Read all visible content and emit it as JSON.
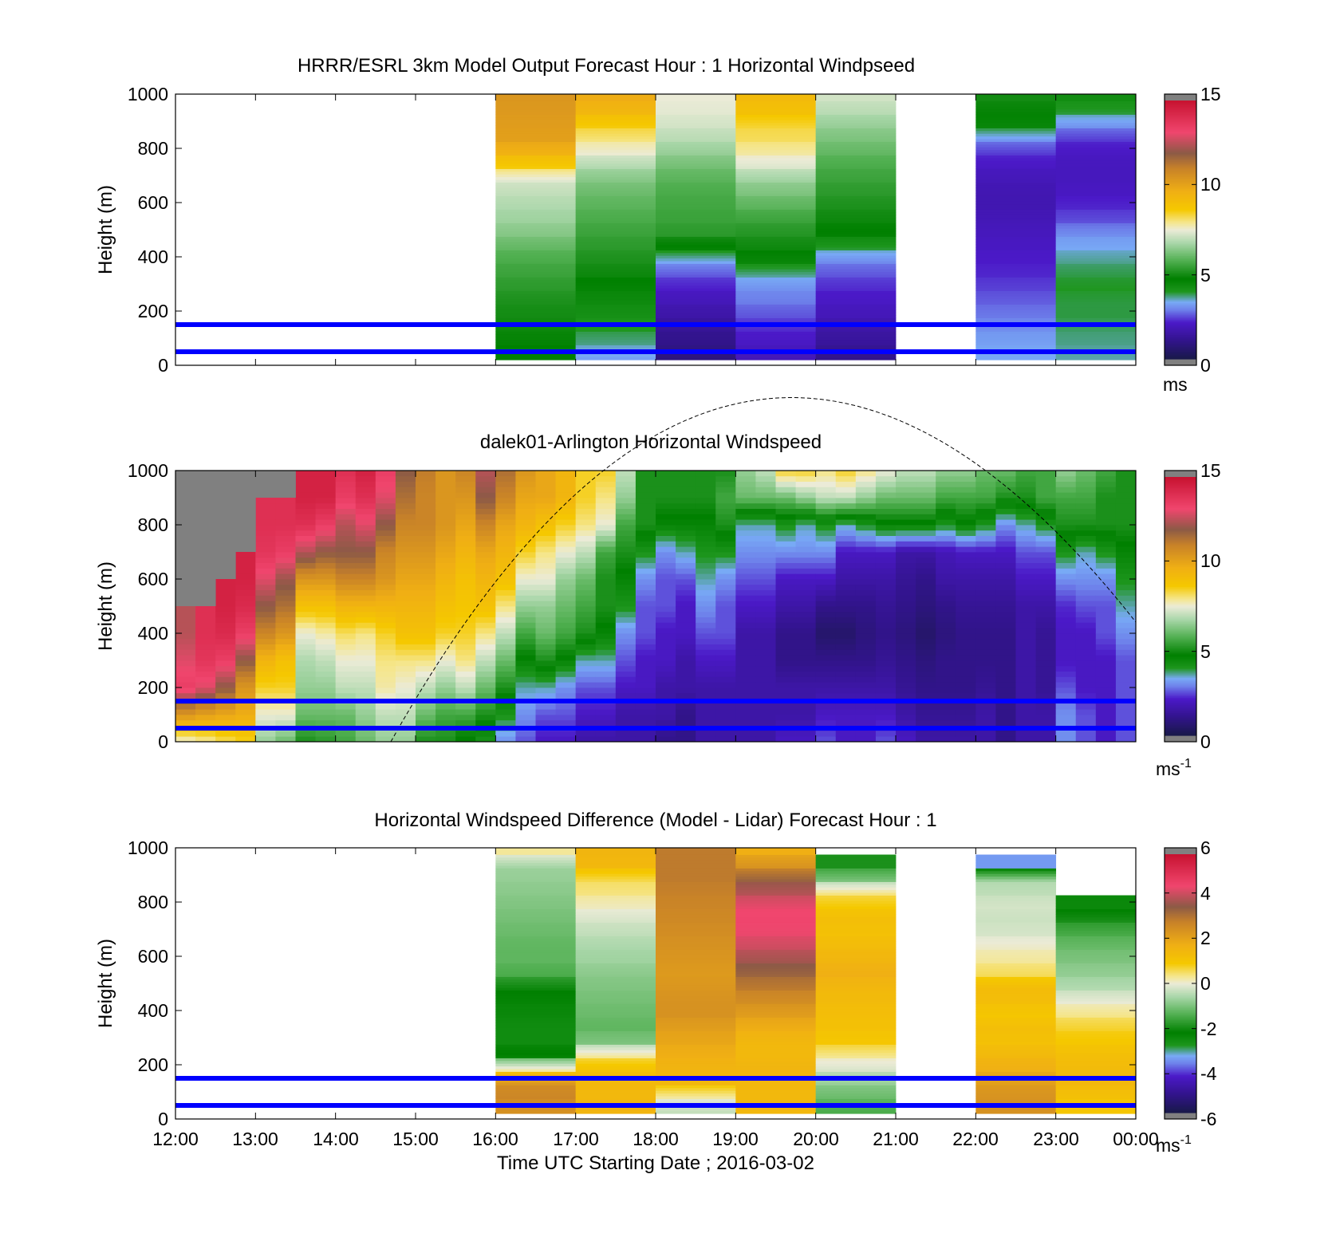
{
  "chart_data": [
    {
      "type": "heatmap",
      "title": "HRRR/ESRL 3km Model Output   Forecast Hour : 1 Horizontal Windpseed",
      "ylabel": "Height (m)",
      "xlabel": "",
      "ylim": [
        0,
        1000
      ],
      "yticks": [
        "0",
        "200",
        "400",
        "600",
        "800",
        "1000"
      ],
      "xlim_hours": [
        12,
        24
      ],
      "colorbar": {
        "min": 0,
        "max": 15,
        "ticks": [
          "0",
          "5",
          "10",
          "15"
        ],
        "unit": "ms",
        "unit_sup": ""
      },
      "reference_lines_m": [
        50,
        150
      ],
      "hours": [
        16,
        17,
        18,
        19,
        20,
        22,
        23
      ],
      "heights": [
        50,
        100,
        150,
        200,
        250,
        300,
        350,
        400,
        450,
        500,
        550,
        600,
        650,
        700,
        750,
        800,
        850,
        900,
        950,
        1000
      ],
      "values": [
        [
          4.6,
          4.7,
          4.8,
          4.9,
          5.0,
          5.2,
          5.4,
          5.6,
          5.9,
          6.3,
          6.6,
          6.8,
          7.0,
          7.3,
          8.6,
          9.6,
          10.2,
          10.3,
          10.4,
          10.5
        ],
        [
          3.2,
          3.6,
          3.9,
          4.1,
          4.3,
          4.5,
          4.8,
          5.0,
          5.2,
          5.4,
          5.6,
          5.8,
          6.0,
          6.3,
          6.8,
          7.5,
          8.0,
          8.6,
          9.4,
          9.8
        ],
        [
          0.8,
          1.0,
          1.2,
          1.5,
          1.8,
          2.1,
          2.5,
          3.2,
          4.5,
          5.2,
          5.4,
          5.5,
          5.6,
          5.8,
          6.1,
          6.5,
          6.9,
          7.2,
          7.4,
          7.5
        ],
        [
          1.8,
          2.0,
          2.2,
          2.5,
          2.8,
          3.0,
          3.5,
          4.4,
          4.8,
          5.1,
          5.4,
          5.8,
          6.2,
          6.6,
          7.3,
          7.8,
          8.2,
          8.4,
          9.0,
          9.3
        ],
        [
          1.0,
          1.3,
          1.5,
          1.8,
          2.0,
          2.2,
          2.5,
          2.9,
          3.8,
          4.6,
          4.8,
          5.0,
          5.2,
          5.4,
          5.6,
          5.9,
          6.2,
          6.5,
          6.9,
          7.2
        ],
        [
          3.3,
          3.2,
          3.0,
          2.8,
          2.6,
          2.4,
          2.2,
          2.1,
          2.0,
          1.9,
          1.8,
          1.7,
          1.7,
          1.8,
          2.0,
          2.3,
          3.0,
          4.4,
          4.7,
          4.9
        ],
        [
          3.5,
          3.6,
          3.7,
          3.8,
          3.8,
          3.9,
          3.8,
          3.6,
          3.3,
          3.0,
          2.5,
          2.2,
          2.0,
          1.9,
          1.9,
          2.0,
          2.3,
          3.0,
          3.8,
          4.2
        ]
      ]
    },
    {
      "type": "heatmap",
      "title": "dalek01-Arlington  Horizontal Windspeed",
      "ylabel": "Height (m)",
      "xlabel": "",
      "ylim": [
        0,
        1000
      ],
      "yticks": [
        "0",
        "200",
        "400",
        "600",
        "800",
        "1000"
      ],
      "xlim_hours": [
        12,
        24
      ],
      "colorbar": {
        "min": 0,
        "max": 15,
        "ticks": [
          "0",
          "5",
          "10",
          "15"
        ],
        "unit": "ms",
        "unit_sup": "-1"
      },
      "reference_lines_m": [
        50,
        150
      ],
      "hours": [
        12,
        12.25,
        12.5,
        12.75,
        13,
        13.25,
        13.5,
        13.75,
        14,
        14.25,
        14.5,
        14.75,
        15,
        15.25,
        15.5,
        15.75,
        16,
        16.25,
        16.5,
        16.75,
        17,
        17.25,
        17.5,
        17.75,
        18,
        18.25,
        18.5,
        18.75,
        19,
        19.25,
        19.5,
        19.75,
        20,
        20.25,
        20.5,
        20.75,
        21,
        21.25,
        21.5,
        21.75,
        22,
        22.25,
        22.5,
        22.75,
        23,
        23.25,
        23.5,
        23.75
      ],
      "heights": [
        0,
        100,
        200,
        300,
        400,
        500,
        600,
        700,
        800,
        900,
        1000
      ],
      "values": [
        [
          7.5,
          10.5,
          13.5,
          13.0,
          12.5,
          null,
          null,
          null,
          null,
          null,
          null
        ],
        [
          7.8,
          10.2,
          13.0,
          13.8,
          14.0,
          null,
          null,
          null,
          null,
          null,
          null
        ],
        [
          8.2,
          10.0,
          12.0,
          13.5,
          14.2,
          14.5,
          null,
          null,
          null,
          null,
          null
        ],
        [
          8.5,
          9.8,
          10.5,
          12.0,
          13.5,
          14.2,
          14.5,
          null,
          null,
          null,
          null
        ],
        [
          6.5,
          7.5,
          8.5,
          9.5,
          11.0,
          12.0,
          13.0,
          13.8,
          14.0,
          null,
          null
        ],
        [
          6.0,
          7.5,
          8.5,
          9.0,
          10.5,
          11.5,
          12.2,
          13.5,
          14.0,
          null,
          null
        ],
        [
          5.0,
          6.0,
          6.5,
          6.8,
          7.5,
          9.0,
          10.5,
          12.5,
          14.0,
          14.5,
          null
        ],
        [
          5.2,
          6.0,
          6.5,
          7.0,
          7.8,
          9.0,
          10.5,
          12.0,
          13.5,
          14.5,
          null
        ],
        [
          5.5,
          6.0,
          7.0,
          7.5,
          8.2,
          9.5,
          11.0,
          12.0,
          12.5,
          13.5,
          14.0
        ],
        [
          6.0,
          6.5,
          7.0,
          7.5,
          8.0,
          9.5,
          11.0,
          12.0,
          13.0,
          14.0,
          14.5
        ],
        [
          6.5,
          7.0,
          7.8,
          8.0,
          8.5,
          9.5,
          10.5,
          11.0,
          12.0,
          13.0,
          13.5
        ],
        [
          6.5,
          7.0,
          7.5,
          8.0,
          9.0,
          9.5,
          10.0,
          10.5,
          11.0,
          11.5,
          12.0
        ],
        [
          5.0,
          6.0,
          7.0,
          8.0,
          9.0,
          9.5,
          10.0,
          10.5,
          11.0,
          11.0,
          11.2
        ],
        [
          5.0,
          5.5,
          6.5,
          7.5,
          8.5,
          9.0,
          9.5,
          10.0,
          10.5,
          10.5,
          10.5
        ],
        [
          4.5,
          5.5,
          7.0,
          8.0,
          8.5,
          8.8,
          9.0,
          9.5,
          10.0,
          10.5,
          11.0
        ],
        [
          4.0,
          5.0,
          6.0,
          7.0,
          8.0,
          9.0,
          9.5,
          10.0,
          11.0,
          12.0,
          12.5
        ],
        [
          3.0,
          4.0,
          5.0,
          6.0,
          7.0,
          8.0,
          9.0,
          9.5,
          10.0,
          11.0,
          11.5
        ],
        [
          2.5,
          3.0,
          3.5,
          4.5,
          5.5,
          6.5,
          7.5,
          8.5,
          9.5,
          10.0,
          10.5
        ],
        [
          2.0,
          2.5,
          3.5,
          5.0,
          6.0,
          6.5,
          7.5,
          8.0,
          9.0,
          10.0,
          10.0
        ],
        [
          2.0,
          2.5,
          3.0,
          4.5,
          5.5,
          6.0,
          6.5,
          7.5,
          8.5,
          9.5,
          9.5
        ],
        [
          1.5,
          2.0,
          2.5,
          3.5,
          5.0,
          5.5,
          6.0,
          7.0,
          8.0,
          8.5,
          8.5
        ],
        [
          1.5,
          2.0,
          2.5,
          3.5,
          4.5,
          5.0,
          5.0,
          5.5,
          7.5,
          8.0,
          8.5
        ],
        [
          1.5,
          1.5,
          2.0,
          2.5,
          3.0,
          4.0,
          4.5,
          5.0,
          5.5,
          6.5,
          7.0
        ],
        [
          1.5,
          1.5,
          2.0,
          2.0,
          2.5,
          2.5,
          3.0,
          4.0,
          5.0,
          5.0,
          5.0
        ],
        [
          1.0,
          1.5,
          1.5,
          2.0,
          2.0,
          2.5,
          2.5,
          3.0,
          4.5,
          5.0,
          5.0
        ],
        [
          1.0,
          1.0,
          1.5,
          1.5,
          2.0,
          2.0,
          2.5,
          3.5,
          4.5,
          5.0,
          5.0
        ],
        [
          1.5,
          1.5,
          1.5,
          2.0,
          2.5,
          3.0,
          3.5,
          4.0,
          4.5,
          5.0,
          5.0
        ],
        [
          1.5,
          1.5,
          1.5,
          2.0,
          2.5,
          2.5,
          3.0,
          4.0,
          5.0,
          5.5,
          5.0
        ],
        [
          1.5,
          1.5,
          1.5,
          1.5,
          1.5,
          2.0,
          2.5,
          3.0,
          3.5,
          6.0,
          6.5
        ],
        [
          1.5,
          1.5,
          1.5,
          1.5,
          1.5,
          2.0,
          2.5,
          3.0,
          3.5,
          6.0,
          7.0
        ],
        [
          2.0,
          1.5,
          1.5,
          1.0,
          1.0,
          1.5,
          2.0,
          3.0,
          4.0,
          6.0,
          8.5
        ],
        [
          2.0,
          1.5,
          1.5,
          1.0,
          1.0,
          1.5,
          2.0,
          3.0,
          3.5,
          6.5,
          8.5
        ],
        [
          2.5,
          2.0,
          1.5,
          1.0,
          0.5,
          1.0,
          2.0,
          3.0,
          4.0,
          7.0,
          8.0
        ],
        [
          2.0,
          2.0,
          1.5,
          1.0,
          0.5,
          1.0,
          1.5,
          2.0,
          3.5,
          7.0,
          8.5
        ],
        [
          2.0,
          2.0,
          1.5,
          1.0,
          0.8,
          1.0,
          1.5,
          2.0,
          4.0,
          6.5,
          8.0
        ],
        [
          2.5,
          2.0,
          1.5,
          1.2,
          1.0,
          1.2,
          1.5,
          2.0,
          4.5,
          6.0,
          7.5
        ],
        [
          2.0,
          1.5,
          1.2,
          1.0,
          0.8,
          1.0,
          1.2,
          1.5,
          4.5,
          6.0,
          7.0
        ],
        [
          1.5,
          1.2,
          1.0,
          0.8,
          0.5,
          0.8,
          1.0,
          1.5,
          4.5,
          6.0,
          7.0
        ],
        [
          1.5,
          1.2,
          1.0,
          1.0,
          0.8,
          1.0,
          1.5,
          1.8,
          4.0,
          5.5,
          6.5
        ],
        [
          1.5,
          1.2,
          1.0,
          1.0,
          1.0,
          1.2,
          1.5,
          2.0,
          4.5,
          5.5,
          6.5
        ],
        [
          1.5,
          1.5,
          1.2,
          1.0,
          1.0,
          1.2,
          1.5,
          2.0,
          4.0,
          5.5,
          6.0
        ],
        [
          1.0,
          1.0,
          1.0,
          1.0,
          1.0,
          1.2,
          1.5,
          2.0,
          3.0,
          5.0,
          6.0
        ],
        [
          1.5,
          1.5,
          1.5,
          1.5,
          1.5,
          1.5,
          2.0,
          2.5,
          3.5,
          5.0,
          5.5
        ],
        [
          1.5,
          1.5,
          1.2,
          1.2,
          1.2,
          1.5,
          2.0,
          2.5,
          4.0,
          5.5,
          5.5
        ],
        [
          3.0,
          3.0,
          2.5,
          2.0,
          2.0,
          2.2,
          3.0,
          4.0,
          5.0,
          5.5,
          6.5
        ],
        [
          2.5,
          2.5,
          2.0,
          2.0,
          2.0,
          2.5,
          3.0,
          3.5,
          5.0,
          5.5,
          6.0
        ],
        [
          2.0,
          2.0,
          2.0,
          2.0,
          2.5,
          2.5,
          3.0,
          4.0,
          5.0,
          5.0,
          5.5
        ],
        [
          2.5,
          2.5,
          2.5,
          2.5,
          3.0,
          3.5,
          4.0,
          4.5,
          5.0,
          5.0,
          5.0
        ]
      ]
    },
    {
      "type": "heatmap",
      "title": "Horizontal Windspeed Difference (Model - Lidar) Forecast Hour : 1",
      "ylabel": "Height (m)",
      "xlabel": "Time UTC  Starting Date ; 2016-03-02",
      "ylim": [
        0,
        1000
      ],
      "yticks": [
        "0",
        "200",
        "400",
        "600",
        "800",
        "1000"
      ],
      "xticks": [
        "12:00",
        "13:00",
        "14:00",
        "15:00",
        "16:00",
        "17:00",
        "18:00",
        "19:00",
        "20:00",
        "21:00",
        "22:00",
        "23:00",
        "00:00"
      ],
      "xlim_hours": [
        12,
        24
      ],
      "colorbar": {
        "min": -6,
        "max": 6,
        "ticks": [
          "-6",
          "-4",
          "-2",
          "0",
          "2",
          "4",
          "6"
        ],
        "unit": "ms",
        "unit_sup": "-1"
      },
      "reference_lines_m": [
        50,
        150
      ],
      "hours": [
        16,
        17,
        18,
        19,
        20,
        22,
        23
      ],
      "heights": [
        50,
        100,
        150,
        200,
        250,
        300,
        350,
        400,
        450,
        500,
        550,
        600,
        650,
        700,
        750,
        800,
        850,
        900,
        950,
        1000
      ],
      "values": [
        [
          2.5,
          2.8,
          2.5,
          0.4,
          -2.2,
          -2.6,
          -2.6,
          -2.5,
          -2.4,
          -2.2,
          -1.5,
          -1.3,
          -1.3,
          -1.2,
          -1.1,
          -1.0,
          -0.9,
          -0.8,
          -0.7,
          0.3
        ],
        [
          1.6,
          1.5,
          1.5,
          1.2,
          0.4,
          -1.0,
          -1.3,
          -1.2,
          -1.1,
          -1.0,
          -0.9,
          -0.7,
          -0.6,
          -0.4,
          -0.2,
          0.1,
          0.4,
          0.6,
          1.5,
          1.6
        ],
        [
          -0.4,
          0.2,
          1.5,
          1.6,
          1.8,
          2.0,
          2.2,
          2.5,
          2.5,
          2.4,
          2.3,
          2.4,
          2.5,
          2.6,
          2.7,
          2.8,
          2.9,
          3.0,
          3.0,
          3.0
        ],
        [
          1.5,
          1.5,
          1.5,
          1.6,
          1.5,
          1.5,
          1.8,
          2.2,
          2.6,
          3.0,
          3.4,
          3.8,
          4.2,
          4.5,
          4.6,
          4.5,
          4.0,
          3.5,
          2.5,
          1.8
        ],
        [
          -1.5,
          -1.2,
          -0.8,
          -0.2,
          0.3,
          1.0,
          1.2,
          1.3,
          1.4,
          1.5,
          1.8,
          1.6,
          1.4,
          1.2,
          1.3,
          1.0,
          0.5,
          -1.0,
          -2.0,
          null
        ],
        [
          2.5,
          2.5,
          2.2,
          1.8,
          1.5,
          1.2,
          1.3,
          1.0,
          1.3,
          1.4,
          0.6,
          0.3,
          0.1,
          -0.2,
          -0.3,
          -0.2,
          -0.4,
          -0.6,
          -3.5,
          null
        ],
        [
          1.0,
          1.2,
          1.5,
          1.4,
          1.3,
          1.0,
          0.8,
          0.4,
          0.0,
          -0.5,
          -0.8,
          -1.0,
          -1.2,
          -1.5,
          -2.0,
          -2.5,
          null,
          null,
          null,
          null
        ]
      ]
    }
  ],
  "colors": {
    "reference_line": "#0000ff",
    "above_scale": "#808080",
    "below_scale": "#808080",
    "profile_curve": "#000000"
  }
}
